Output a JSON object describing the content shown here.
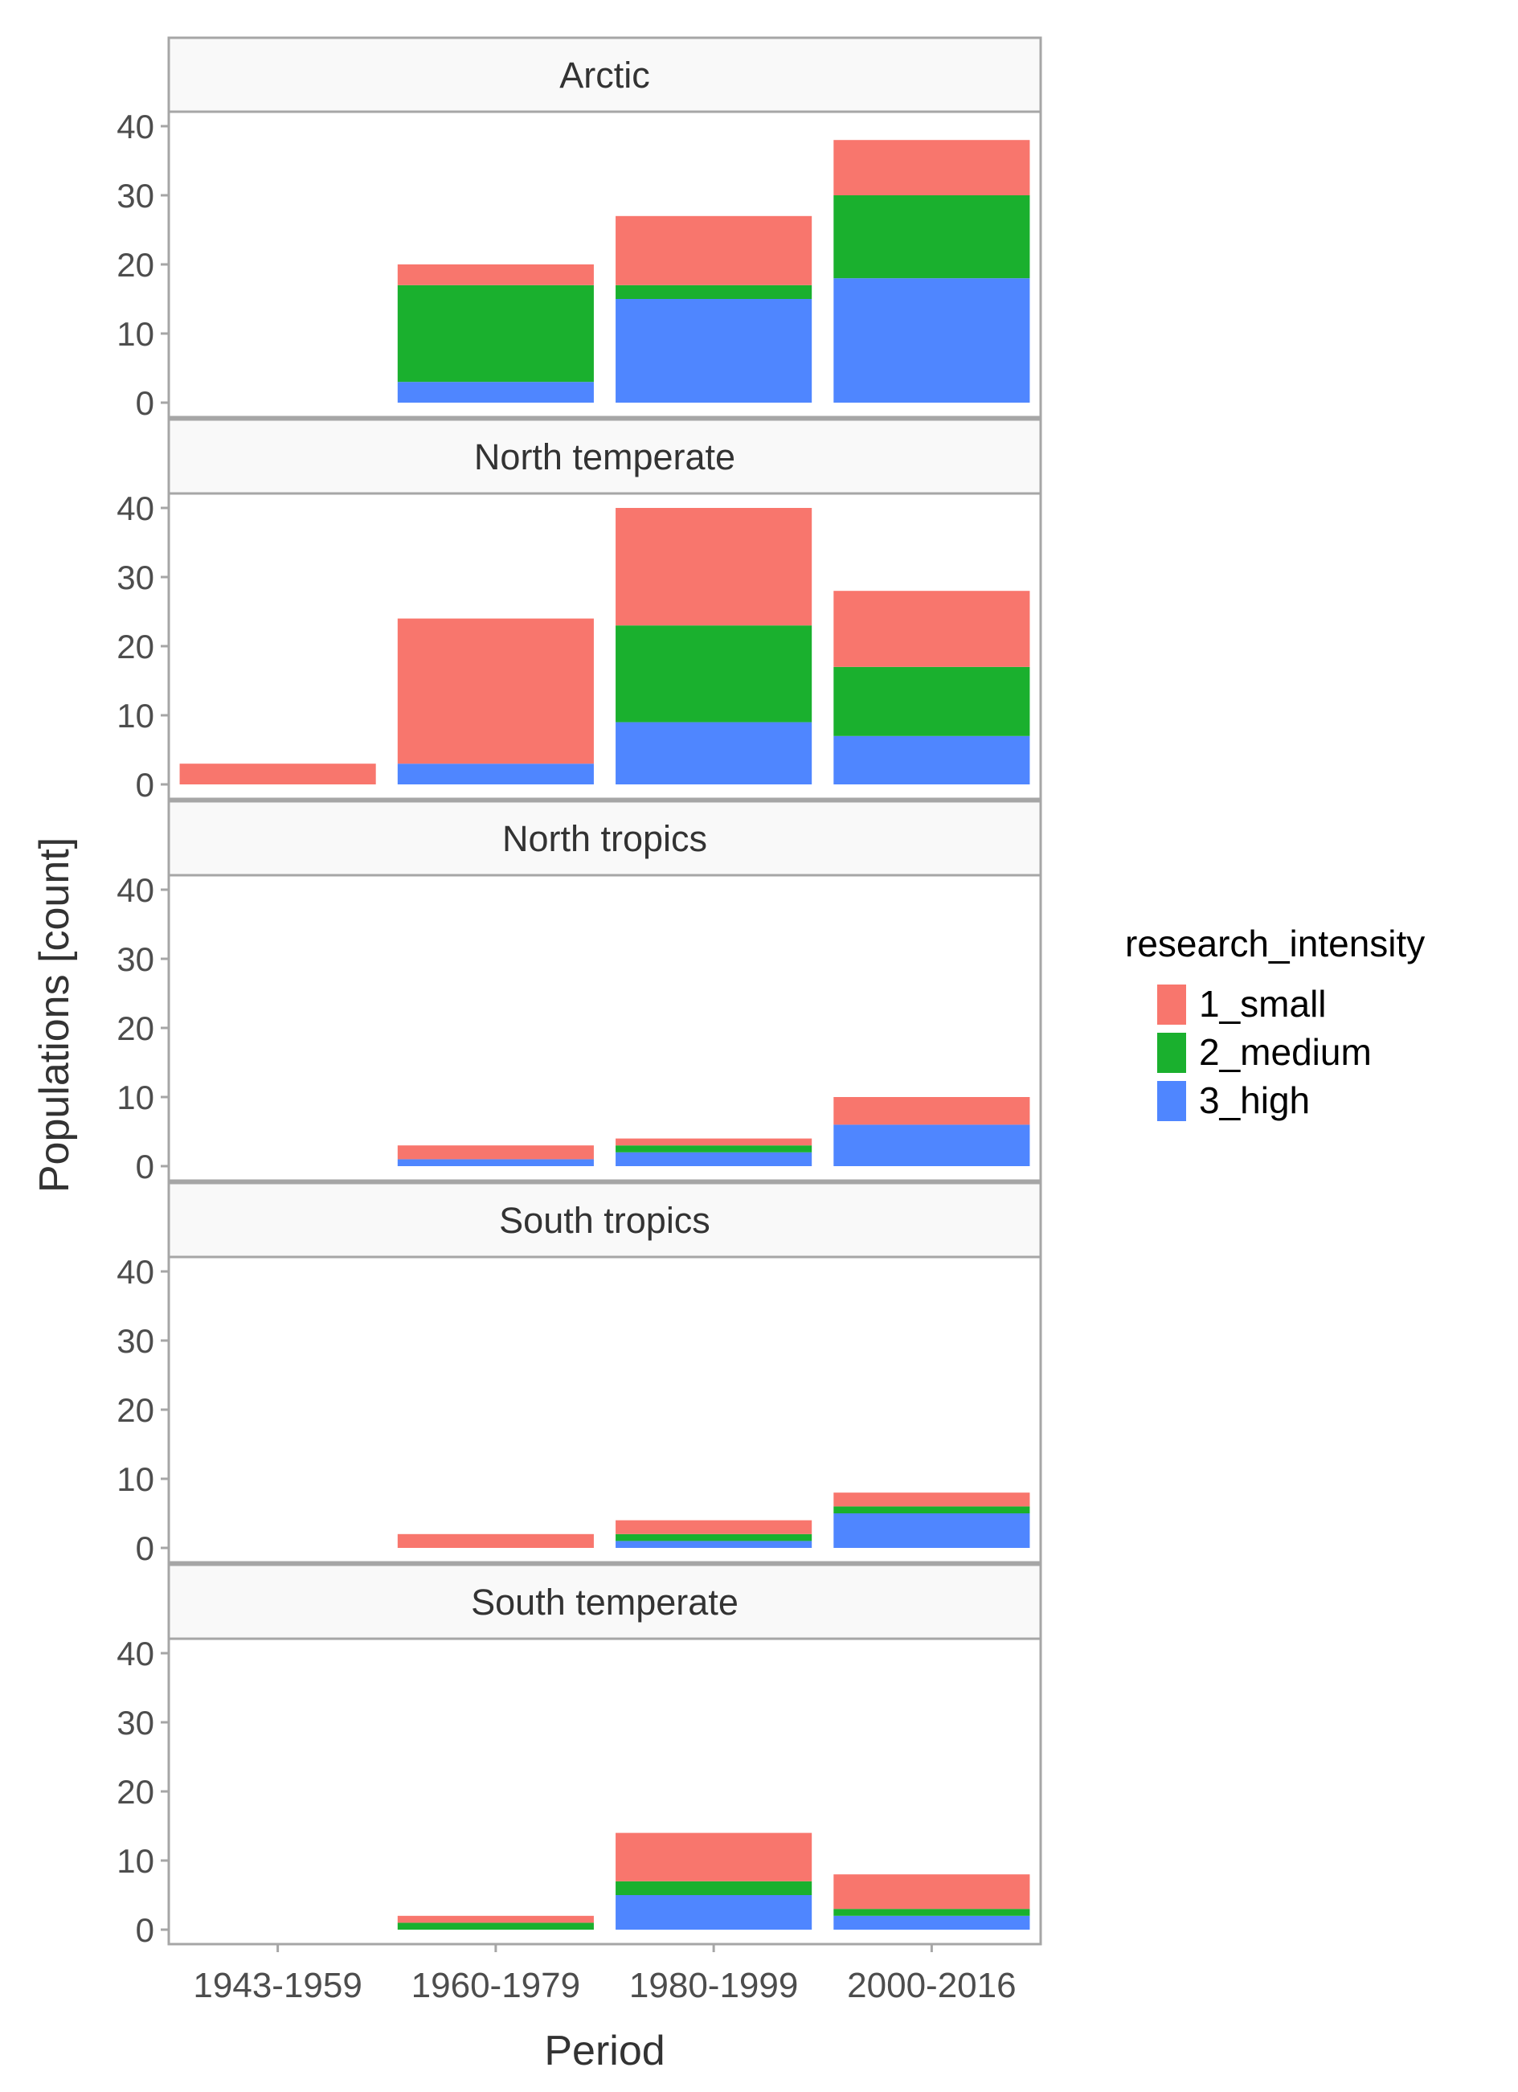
{
  "chart_data": {
    "type": "bar",
    "stacked": true,
    "facet_layout": "vertical",
    "xlabel": "Period",
    "ylabel": "Populations [count]",
    "categories": [
      "1943-1959",
      "1960-1979",
      "1980-1999",
      "2000-2016"
    ],
    "yticks": [
      0,
      10,
      20,
      30,
      40
    ],
    "ylim": [
      0,
      42
    ],
    "grid": false,
    "legend": {
      "title": "research_intensity",
      "position": "right",
      "entries": [
        {
          "name": "1_small",
          "color": "#F8766D"
        },
        {
          "name": "2_medium",
          "color": "#1AB02E"
        },
        {
          "name": "3_high",
          "color": "#4F86FF"
        }
      ]
    },
    "stack_order_bottom_to_top": [
      "3_high",
      "2_medium",
      "1_small"
    ],
    "panels": [
      {
        "title": "Arctic",
        "series": [
          {
            "name": "1_small",
            "values": [
              0,
              3,
              10,
              8
            ]
          },
          {
            "name": "2_medium",
            "values": [
              0,
              14,
              2,
              12
            ]
          },
          {
            "name": "3_high",
            "values": [
              0,
              3,
              15,
              18
            ]
          }
        ]
      },
      {
        "title": "North temperate",
        "series": [
          {
            "name": "1_small",
            "values": [
              3,
              21,
              17,
              11
            ]
          },
          {
            "name": "2_medium",
            "values": [
              0,
              0,
              14,
              10
            ]
          },
          {
            "name": "3_high",
            "values": [
              0,
              3,
              9,
              7
            ]
          }
        ]
      },
      {
        "title": "North tropics",
        "series": [
          {
            "name": "1_small",
            "values": [
              0,
              2,
              1,
              4
            ]
          },
          {
            "name": "2_medium",
            "values": [
              0,
              0,
              1,
              0
            ]
          },
          {
            "name": "3_high",
            "values": [
              0,
              1,
              2,
              6
            ]
          }
        ]
      },
      {
        "title": "South tropics",
        "series": [
          {
            "name": "1_small",
            "values": [
              0,
              2,
              2,
              2
            ]
          },
          {
            "name": "2_medium",
            "values": [
              0,
              0,
              1,
              1
            ]
          },
          {
            "name": "3_high",
            "values": [
              0,
              0,
              1,
              5
            ]
          }
        ]
      },
      {
        "title": "South temperate",
        "series": [
          {
            "name": "1_small",
            "values": [
              0,
              1,
              7,
              5
            ]
          },
          {
            "name": "2_medium",
            "values": [
              0,
              1,
              2,
              1
            ]
          },
          {
            "name": "3_high",
            "values": [
              0,
              0,
              5,
              2
            ]
          }
        ]
      }
    ]
  }
}
